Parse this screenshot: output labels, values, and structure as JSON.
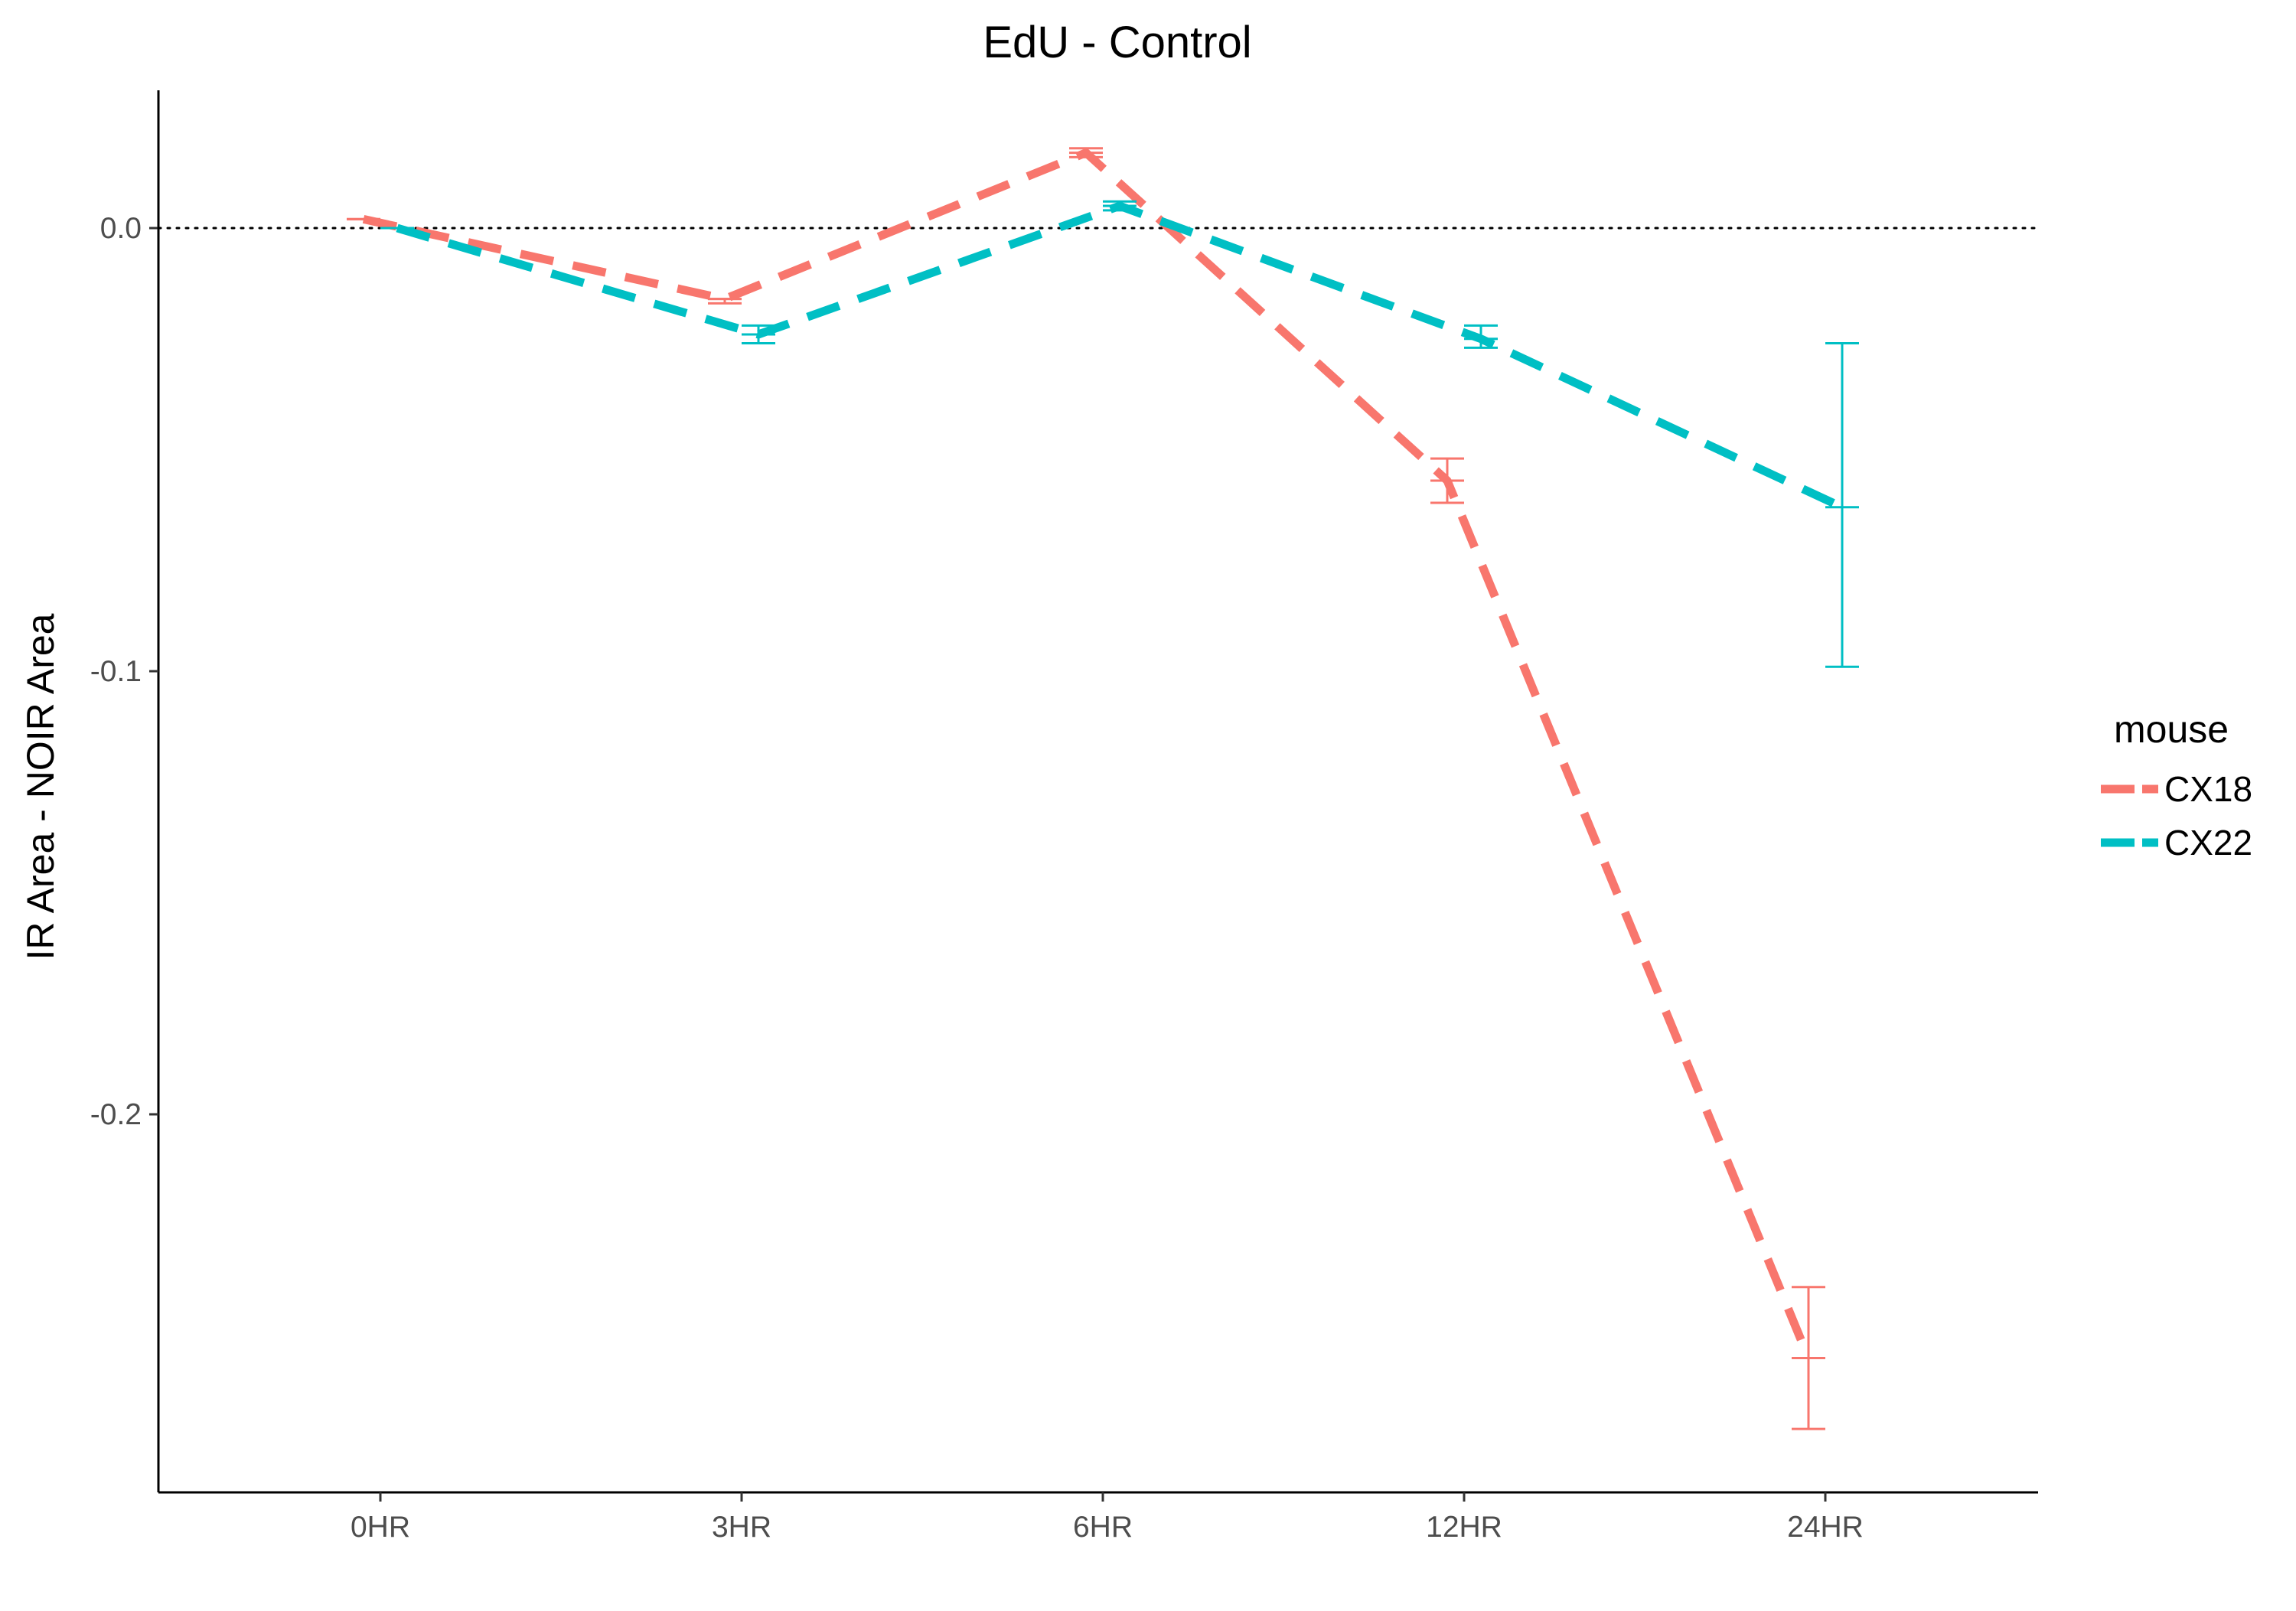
{
  "chart_data": {
    "type": "line",
    "title": "EdU - Control",
    "xlabel": "",
    "ylabel": "IR Area - NOIR Area",
    "categories": [
      "0HR",
      "3HR",
      "6HR",
      "12HR",
      "24HR"
    ],
    "y_ticks": [
      0.0,
      -0.1,
      -0.2
    ],
    "y_tick_labels": [
      "0.0",
      "-0.1",
      "-0.2"
    ],
    "ylim": [
      -0.286,
      0.031
    ],
    "reference_line": {
      "y": 0.0,
      "style": "dotted"
    },
    "grid": false,
    "legend": {
      "title": "mouse",
      "position": "right"
    },
    "series": [
      {
        "name": "CX18",
        "color": "#F8766D",
        "line_style": "dashed",
        "values": [
          0.002,
          -0.016,
          0.017,
          -0.057,
          -0.255
        ],
        "err_low": [
          0.002,
          -0.017,
          0.016,
          -0.062,
          -0.271
        ],
        "err_high": [
          0.002,
          -0.016,
          0.018,
          -0.052,
          -0.239
        ]
      },
      {
        "name": "CX22",
        "color": "#00BFC4",
        "line_style": "dashed",
        "values": [
          0.0,
          -0.024,
          0.005,
          -0.025,
          -0.063
        ],
        "err_low": [
          0.0,
          -0.026,
          0.004,
          -0.027,
          -0.099
        ],
        "err_high": [
          0.0,
          -0.022,
          0.006,
          -0.022,
          -0.026
        ]
      }
    ]
  }
}
